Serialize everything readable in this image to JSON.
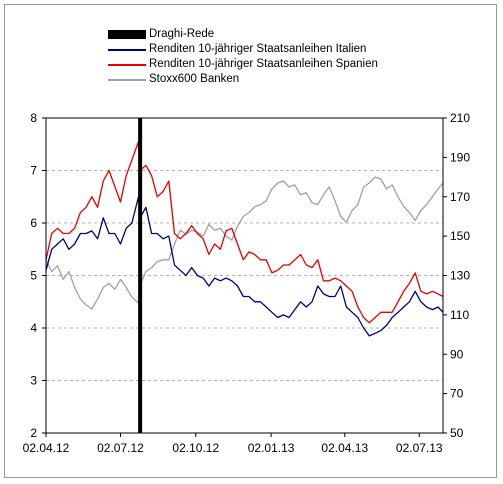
{
  "chart_data": {
    "type": "line",
    "y_left_ticks": [
      2,
      3,
      4,
      5,
      6,
      7,
      8
    ],
    "y_left_range": [
      2,
      8
    ],
    "y_right_ticks": [
      50,
      70,
      90,
      110,
      130,
      150,
      170,
      190,
      210
    ],
    "y_right_range": [
      50,
      210
    ],
    "x_range": [
      "2012-04-02",
      "2013-07-31"
    ],
    "x_ticks": [
      {
        "date": "2012-04-02",
        "label": "02.04.12"
      },
      {
        "date": "2012-07-02",
        "label": "02.07.12"
      },
      {
        "date": "2012-10-02",
        "label": "02.10.12"
      },
      {
        "date": "2013-01-02",
        "label": "02.01.13"
      },
      {
        "date": "2013-04-02",
        "label": "02.04.13"
      },
      {
        "date": "2013-07-02",
        "label": "02.07.13"
      }
    ],
    "grid": "horizontal dashed",
    "legend_position": "top",
    "event": {
      "name": "Draghi-Rede",
      "date": "2012-07-26",
      "color": "#000000"
    },
    "series": [
      {
        "name": "Renditen 10-jähriger Staatsanleihen Italien",
        "axis": "left",
        "color": "#000080",
        "points": [
          [
            "2012-04-02",
            5.1
          ],
          [
            "2012-04-09",
            5.5
          ],
          [
            "2012-04-16",
            5.6
          ],
          [
            "2012-04-23",
            5.7
          ],
          [
            "2012-04-30",
            5.5
          ],
          [
            "2012-05-07",
            5.6
          ],
          [
            "2012-05-14",
            5.8
          ],
          [
            "2012-05-21",
            5.8
          ],
          [
            "2012-05-28",
            5.85
          ],
          [
            "2012-06-04",
            5.7
          ],
          [
            "2012-06-11",
            6.1
          ],
          [
            "2012-06-18",
            5.8
          ],
          [
            "2012-06-25",
            5.8
          ],
          [
            "2012-07-02",
            5.6
          ],
          [
            "2012-07-09",
            5.9
          ],
          [
            "2012-07-16",
            6.0
          ],
          [
            "2012-07-24",
            6.5
          ],
          [
            "2012-07-26",
            6.1
          ],
          [
            "2012-08-02",
            6.3
          ],
          [
            "2012-08-09",
            5.8
          ],
          [
            "2012-08-16",
            5.8
          ],
          [
            "2012-08-23",
            5.7
          ],
          [
            "2012-08-30",
            5.75
          ],
          [
            "2012-09-06",
            5.2
          ],
          [
            "2012-09-13",
            5.1
          ],
          [
            "2012-09-20",
            5.0
          ],
          [
            "2012-09-27",
            5.15
          ],
          [
            "2012-10-04",
            5.0
          ],
          [
            "2012-10-11",
            4.95
          ],
          [
            "2012-10-18",
            4.8
          ],
          [
            "2012-10-25",
            4.95
          ],
          [
            "2012-11-01",
            4.9
          ],
          [
            "2012-11-08",
            4.95
          ],
          [
            "2012-11-15",
            4.9
          ],
          [
            "2012-11-22",
            4.8
          ],
          [
            "2012-11-29",
            4.6
          ],
          [
            "2012-12-06",
            4.6
          ],
          [
            "2012-12-13",
            4.5
          ],
          [
            "2012-12-20",
            4.5
          ],
          [
            "2012-12-27",
            4.4
          ],
          [
            "2013-01-03",
            4.3
          ],
          [
            "2013-01-10",
            4.2
          ],
          [
            "2013-01-17",
            4.25
          ],
          [
            "2013-01-24",
            4.2
          ],
          [
            "2013-01-31",
            4.35
          ],
          [
            "2013-02-07",
            4.5
          ],
          [
            "2013-02-14",
            4.4
          ],
          [
            "2013-02-21",
            4.5
          ],
          [
            "2013-02-28",
            4.8
          ],
          [
            "2013-03-07",
            4.65
          ],
          [
            "2013-03-14",
            4.6
          ],
          [
            "2013-03-21",
            4.6
          ],
          [
            "2013-03-28",
            4.8
          ],
          [
            "2013-04-04",
            4.4
          ],
          [
            "2013-04-11",
            4.3
          ],
          [
            "2013-04-18",
            4.2
          ],
          [
            "2013-04-25",
            4.0
          ],
          [
            "2013-05-02",
            3.85
          ],
          [
            "2013-05-09",
            3.9
          ],
          [
            "2013-05-16",
            3.95
          ],
          [
            "2013-05-23",
            4.05
          ],
          [
            "2013-05-30",
            4.2
          ],
          [
            "2013-06-06",
            4.3
          ],
          [
            "2013-06-13",
            4.4
          ],
          [
            "2013-06-20",
            4.5
          ],
          [
            "2013-06-27",
            4.7
          ],
          [
            "2013-07-04",
            4.5
          ],
          [
            "2013-07-11",
            4.4
          ],
          [
            "2013-07-18",
            4.35
          ],
          [
            "2013-07-25",
            4.4
          ],
          [
            "2013-07-31",
            4.3
          ]
        ]
      },
      {
        "name": "Renditen 10-jähriger Staatsanleihen Spanien",
        "axis": "left",
        "color": "#e60000",
        "points": [
          [
            "2012-04-02",
            5.3
          ],
          [
            "2012-04-09",
            5.8
          ],
          [
            "2012-04-16",
            5.9
          ],
          [
            "2012-04-23",
            5.8
          ],
          [
            "2012-04-30",
            5.8
          ],
          [
            "2012-05-07",
            5.9
          ],
          [
            "2012-05-14",
            6.2
          ],
          [
            "2012-05-21",
            6.3
          ],
          [
            "2012-05-28",
            6.5
          ],
          [
            "2012-06-04",
            6.3
          ],
          [
            "2012-06-11",
            6.8
          ],
          [
            "2012-06-18",
            7.0
          ],
          [
            "2012-06-25",
            6.7
          ],
          [
            "2012-07-02",
            6.4
          ],
          [
            "2012-07-09",
            6.9
          ],
          [
            "2012-07-16",
            7.2
          ],
          [
            "2012-07-24",
            7.55
          ],
          [
            "2012-07-26",
            7.0
          ],
          [
            "2012-08-02",
            7.1
          ],
          [
            "2012-08-09",
            6.9
          ],
          [
            "2012-08-16",
            6.5
          ],
          [
            "2012-08-23",
            6.6
          ],
          [
            "2012-08-30",
            6.8
          ],
          [
            "2012-09-06",
            5.8
          ],
          [
            "2012-09-13",
            5.7
          ],
          [
            "2012-09-20",
            5.8
          ],
          [
            "2012-09-27",
            5.95
          ],
          [
            "2012-10-04",
            5.8
          ],
          [
            "2012-10-11",
            5.7
          ],
          [
            "2012-10-18",
            5.4
          ],
          [
            "2012-10-25",
            5.6
          ],
          [
            "2012-11-01",
            5.5
          ],
          [
            "2012-11-08",
            5.85
          ],
          [
            "2012-11-15",
            5.9
          ],
          [
            "2012-11-22",
            5.6
          ],
          [
            "2012-11-29",
            5.3
          ],
          [
            "2012-12-06",
            5.45
          ],
          [
            "2012-12-13",
            5.4
          ],
          [
            "2012-12-20",
            5.3
          ],
          [
            "2012-12-27",
            5.3
          ],
          [
            "2013-01-03",
            5.05
          ],
          [
            "2013-01-10",
            5.1
          ],
          [
            "2013-01-17",
            5.2
          ],
          [
            "2013-01-24",
            5.2
          ],
          [
            "2013-01-31",
            5.3
          ],
          [
            "2013-02-07",
            5.4
          ],
          [
            "2013-02-14",
            5.2
          ],
          [
            "2013-02-21",
            5.15
          ],
          [
            "2013-02-28",
            5.3
          ],
          [
            "2013-03-07",
            4.9
          ],
          [
            "2013-03-14",
            4.9
          ],
          [
            "2013-03-21",
            4.95
          ],
          [
            "2013-03-28",
            4.9
          ],
          [
            "2013-04-04",
            4.8
          ],
          [
            "2013-04-11",
            4.7
          ],
          [
            "2013-04-18",
            4.4
          ],
          [
            "2013-04-25",
            4.2
          ],
          [
            "2013-05-02",
            4.1
          ],
          [
            "2013-05-09",
            4.2
          ],
          [
            "2013-05-16",
            4.3
          ],
          [
            "2013-05-23",
            4.3
          ],
          [
            "2013-05-30",
            4.3
          ],
          [
            "2013-06-06",
            4.5
          ],
          [
            "2013-06-13",
            4.7
          ],
          [
            "2013-06-20",
            4.85
          ],
          [
            "2013-06-27",
            5.05
          ],
          [
            "2013-07-04",
            4.7
          ],
          [
            "2013-07-11",
            4.65
          ],
          [
            "2013-07-18",
            4.7
          ],
          [
            "2013-07-25",
            4.65
          ],
          [
            "2013-07-31",
            4.6
          ]
        ]
      },
      {
        "name": "Stoxx600 Banken",
        "axis": "right",
        "color": "#a0a0a0",
        "points": [
          [
            "2012-04-02",
            138
          ],
          [
            "2012-04-09",
            132
          ],
          [
            "2012-04-16",
            135
          ],
          [
            "2012-04-23",
            128
          ],
          [
            "2012-04-30",
            132
          ],
          [
            "2012-05-07",
            124
          ],
          [
            "2012-05-14",
            118
          ],
          [
            "2012-05-21",
            115
          ],
          [
            "2012-05-28",
            113
          ],
          [
            "2012-06-04",
            118
          ],
          [
            "2012-06-11",
            124
          ],
          [
            "2012-06-18",
            126
          ],
          [
            "2012-06-25",
            123
          ],
          [
            "2012-07-02",
            128
          ],
          [
            "2012-07-09",
            124
          ],
          [
            "2012-07-16",
            119
          ],
          [
            "2012-07-24",
            116
          ],
          [
            "2012-07-26",
            125
          ],
          [
            "2012-08-02",
            132
          ],
          [
            "2012-08-09",
            134
          ],
          [
            "2012-08-16",
            137
          ],
          [
            "2012-08-23",
            138
          ],
          [
            "2012-08-30",
            138
          ],
          [
            "2012-09-06",
            146
          ],
          [
            "2012-09-13",
            153
          ],
          [
            "2012-09-20",
            151
          ],
          [
            "2012-09-27",
            153
          ],
          [
            "2012-10-04",
            152
          ],
          [
            "2012-10-11",
            150
          ],
          [
            "2012-10-18",
            156
          ],
          [
            "2012-10-25",
            153
          ],
          [
            "2012-11-01",
            154
          ],
          [
            "2012-11-08",
            150
          ],
          [
            "2012-11-15",
            148
          ],
          [
            "2012-11-22",
            155
          ],
          [
            "2012-11-29",
            160
          ],
          [
            "2012-12-06",
            162
          ],
          [
            "2012-12-13",
            165
          ],
          [
            "2012-12-20",
            166
          ],
          [
            "2012-12-27",
            168
          ],
          [
            "2013-01-03",
            174
          ],
          [
            "2013-01-10",
            177
          ],
          [
            "2013-01-17",
            178
          ],
          [
            "2013-01-24",
            175
          ],
          [
            "2013-01-31",
            176
          ],
          [
            "2013-02-07",
            171
          ],
          [
            "2013-02-14",
            172
          ],
          [
            "2013-02-21",
            167
          ],
          [
            "2013-02-28",
            166
          ],
          [
            "2013-03-07",
            171
          ],
          [
            "2013-03-14",
            175
          ],
          [
            "2013-03-21",
            168
          ],
          [
            "2013-03-28",
            160
          ],
          [
            "2013-04-04",
            157
          ],
          [
            "2013-04-11",
            163
          ],
          [
            "2013-04-18",
            166
          ],
          [
            "2013-04-25",
            175
          ],
          [
            "2013-05-02",
            177
          ],
          [
            "2013-05-09",
            180
          ],
          [
            "2013-05-16",
            179
          ],
          [
            "2013-05-23",
            174
          ],
          [
            "2013-05-30",
            176
          ],
          [
            "2013-06-06",
            170
          ],
          [
            "2013-06-13",
            165
          ],
          [
            "2013-06-20",
            162
          ],
          [
            "2013-06-27",
            158
          ],
          [
            "2013-07-04",
            163
          ],
          [
            "2013-07-11",
            166
          ],
          [
            "2013-07-18",
            170
          ],
          [
            "2013-07-25",
            174
          ],
          [
            "2013-07-31",
            177
          ]
        ]
      }
    ]
  }
}
